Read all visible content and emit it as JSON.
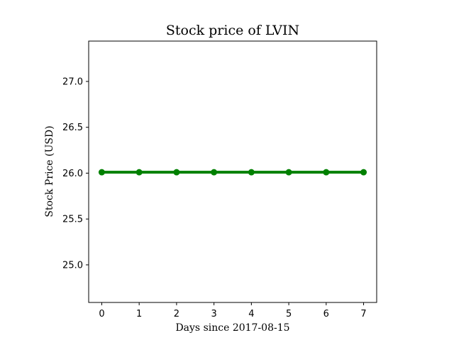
{
  "chart_data": {
    "type": "line",
    "title": "Stock price of LVIN",
    "xlabel": "Days since 2017-08-15",
    "ylabel": "Stock Price (USD)",
    "x": [
      0,
      1,
      2,
      3,
      4,
      5,
      6,
      7
    ],
    "series": [
      {
        "values": [
          26.01,
          26.01,
          26.01,
          26.01,
          26.01,
          26.01,
          26.01,
          26.01
        ],
        "color": "#008000",
        "marker": "circle"
      }
    ],
    "xlim": [
      -0.35,
      7.35
    ],
    "ylim": [
      24.59,
      27.44
    ],
    "x_ticks": [
      "0",
      "1",
      "2",
      "3",
      "4",
      "5",
      "6",
      "7"
    ],
    "y_ticks": [
      "25.0",
      "25.5",
      "26.0",
      "26.5",
      "27.0"
    ],
    "grid": false,
    "legend": false
  }
}
